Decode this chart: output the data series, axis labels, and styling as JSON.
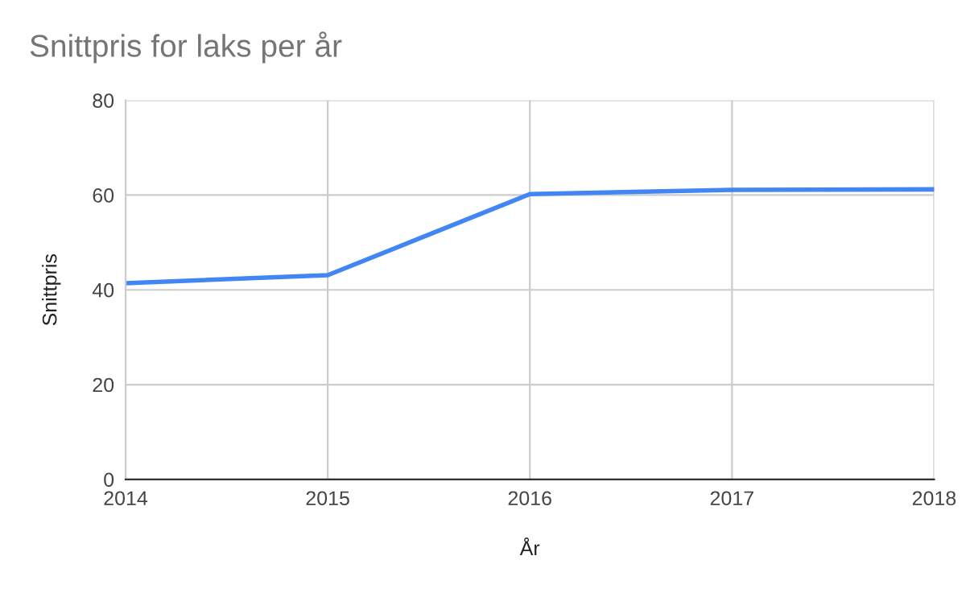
{
  "chart_data": {
    "type": "line",
    "title": "Snittpris for laks per år",
    "xlabel": "År",
    "ylabel": "Snittpris",
    "x": [
      2014,
      2015,
      2016,
      2017,
      2018
    ],
    "series": [
      {
        "color": "#4285f4",
        "values": [
          41.4,
          43.1,
          60.2,
          61.1,
          61.2
        ]
      }
    ],
    "xlim": [
      2014,
      2018
    ],
    "xticks": [
      2014,
      2015,
      2016,
      2017,
      2018
    ],
    "ylim": [
      0,
      80
    ],
    "yticks": [
      0,
      20,
      40,
      60,
      80
    ],
    "grid": true,
    "marker": "none",
    "line_style": "solid"
  }
}
